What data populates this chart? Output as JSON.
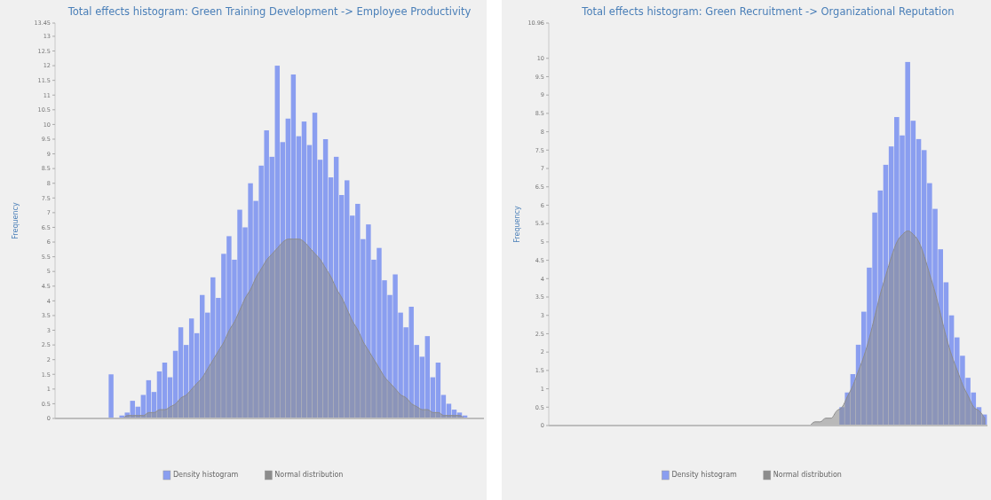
{
  "chart_data": [
    {
      "type": "bar",
      "title": "Total effects histogram: Green Training Development -> Employee Productivity",
      "ylabel": "Frequency",
      "legend": "bottom",
      "categories": [
        null,
        null,
        null,
        null,
        null,
        null,
        null,
        null,
        null,
        null,
        null,
        null,
        null,
        null,
        null,
        null,
        null,
        null,
        null,
        null,
        null,
        null,
        null,
        null,
        null,
        null,
        null,
        null,
        null,
        null,
        null,
        null,
        null,
        null,
        null,
        null,
        null,
        null,
        null,
        null,
        null,
        null,
        null,
        null,
        null,
        null,
        null,
        null,
        null,
        null,
        null,
        null,
        null,
        null,
        null,
        null,
        null,
        null,
        null,
        null,
        null,
        null,
        null,
        null,
        null,
        null,
        null,
        null,
        null,
        null,
        null,
        null,
        null,
        null,
        null,
        null,
        null,
        null,
        null,
        null
      ],
      "series": [
        {
          "name": "Density histogram",
          "type": "bar",
          "color": "#8a9ef0",
          "values": [
            0,
            0,
            0,
            0,
            0,
            0,
            0,
            0,
            0,
            0,
            1.5,
            0,
            0.1,
            0.2,
            0.6,
            0.4,
            0.8,
            1.3,
            0.9,
            1.6,
            1.9,
            1.4,
            2.3,
            3.1,
            2.5,
            3.4,
            2.9,
            4.2,
            3.6,
            4.8,
            4.1,
            5.6,
            6.2,
            5.4,
            7.1,
            6.5,
            8.0,
            7.4,
            8.6,
            9.8,
            8.9,
            12.0,
            9.4,
            10.2,
            11.7,
            9.6,
            10.1,
            9.3,
            10.4,
            8.8,
            9.5,
            8.2,
            8.9,
            7.6,
            8.1,
            6.9,
            7.3,
            6.1,
            6.6,
            5.4,
            5.8,
            4.7,
            4.2,
            4.9,
            3.6,
            3.1,
            3.8,
            2.5,
            2.1,
            2.8,
            1.4,
            1.9,
            0.8,
            0.5,
            0.3,
            0.2,
            0.1,
            0,
            0,
            0
          ]
        },
        {
          "name": "Normal distribution",
          "type": "area",
          "color": "#8c8c8c",
          "values": [
            0,
            0,
            0,
            0,
            0,
            0,
            0,
            0,
            0,
            0,
            0,
            0,
            0,
            0.1,
            0.1,
            0.1,
            0.1,
            0.2,
            0.2,
            0.3,
            0.3,
            0.4,
            0.5,
            0.7,
            0.8,
            1.0,
            1.2,
            1.4,
            1.7,
            2.0,
            2.3,
            2.6,
            3.0,
            3.3,
            3.7,
            4.1,
            4.4,
            4.8,
            5.1,
            5.4,
            5.6,
            5.8,
            6.0,
            6.1,
            6.1,
            6.1,
            6.0,
            5.8,
            5.6,
            5.4,
            5.1,
            4.8,
            4.4,
            4.1,
            3.7,
            3.3,
            3.0,
            2.6,
            2.3,
            2.0,
            1.7,
            1.4,
            1.2,
            1.0,
            0.8,
            0.7,
            0.5,
            0.4,
            0.3,
            0.3,
            0.2,
            0.2,
            0.1,
            0.1,
            0.1,
            0.1,
            0,
            0,
            0,
            0
          ]
        }
      ],
      "ylim": [
        0,
        13.45
      ],
      "yticks": [
        0,
        0.5,
        1,
        1.5,
        2,
        2.5,
        3,
        3.5,
        4,
        4.5,
        5,
        5.5,
        6,
        6.5,
        7,
        7.5,
        8,
        8.5,
        9,
        9.5,
        10,
        10.5,
        11,
        11.5,
        12,
        12.5,
        13,
        13.45
      ]
    },
    {
      "type": "bar",
      "title": "Total effects histogram: Green Recruitment -> Organizational Reputation",
      "ylabel": "Frequency",
      "legend": "bottom",
      "categories": [
        null,
        null,
        null,
        null,
        null,
        null,
        null,
        null,
        null,
        null,
        null,
        null,
        null,
        null,
        null,
        null,
        null,
        null,
        null,
        null,
        null,
        null,
        null,
        null,
        null,
        null,
        null,
        null,
        null,
        null,
        null,
        null,
        null,
        null,
        null,
        null,
        null,
        null,
        null,
        null,
        null,
        null,
        null,
        null,
        null,
        null,
        null,
        null,
        null,
        null,
        null,
        null,
        null,
        null,
        null,
        null,
        null,
        null,
        null,
        null,
        null,
        null,
        null,
        null,
        null,
        null,
        null,
        null,
        null,
        null,
        null,
        null,
        null,
        null,
        null,
        null,
        null,
        null,
        null,
        null
      ],
      "series": [
        {
          "name": "Density histogram",
          "type": "bar",
          "color": "#8a9ef0",
          "values": [
            0,
            0,
            0,
            0,
            0,
            0,
            0,
            0,
            0,
            0,
            0,
            0,
            0,
            0,
            0,
            0,
            0,
            0,
            0,
            0,
            0,
            0,
            0,
            0,
            0,
            0,
            0,
            0,
            0,
            0,
            0,
            0,
            0,
            0,
            0,
            0,
            0,
            0,
            0,
            0,
            0,
            0,
            0,
            0,
            0,
            0,
            0,
            0,
            0,
            0,
            0,
            null,
            null,
            0.5,
            0.9,
            1.4,
            2.2,
            3.1,
            4.3,
            5.8,
            6.4,
            7.1,
            7.6,
            8.4,
            7.9,
            9.9,
            8.3,
            7.8,
            7.5,
            6.6,
            5.9,
            4.8,
            3.9,
            3.0,
            2.4,
            1.9,
            1.3,
            0.9,
            0.5,
            0.3
          ]
        },
        {
          "name": "Normal distribution",
          "type": "area",
          "color": "#8c8c8c",
          "values": [
            0,
            0,
            0,
            0,
            0,
            0,
            0,
            0,
            0,
            0,
            0,
            0,
            0,
            0,
            0,
            0,
            0,
            0,
            0,
            0,
            0,
            0,
            0,
            0,
            0,
            0,
            0,
            0,
            0,
            0,
            0,
            0,
            0,
            0,
            0,
            0,
            0,
            0,
            0,
            0,
            0,
            0,
            0,
            0,
            0,
            0,
            0,
            0,
            0.1,
            0.1,
            0.2,
            0.2,
            0.4,
            0.5,
            0.8,
            1.1,
            1.5,
            1.9,
            2.4,
            3.0,
            3.6,
            4.1,
            4.6,
            5.0,
            5.2,
            5.3,
            5.2,
            5.0,
            4.6,
            4.1,
            3.6,
            3.0,
            2.4,
            1.9,
            1.5,
            1.1,
            0.8,
            0.5,
            0.4,
            0.2
          ]
        }
      ],
      "ylim": [
        0,
        10.96
      ],
      "yticks": [
        0,
        0.5,
        1,
        1.5,
        2,
        2.5,
        3,
        3.5,
        4,
        4.5,
        5,
        5.5,
        6,
        6.5,
        7,
        7.5,
        8,
        8.5,
        9,
        9.5,
        10,
        10.96
      ]
    }
  ]
}
